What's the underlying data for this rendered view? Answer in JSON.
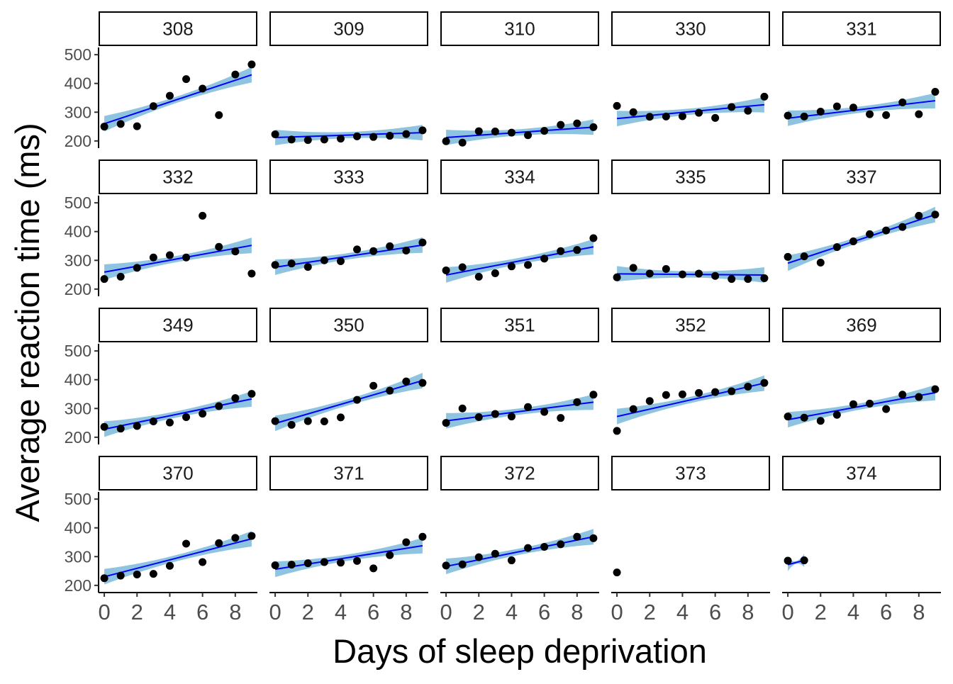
{
  "chart_data": {
    "type": "scatter",
    "layout": "faceted",
    "xlabel": "Days of sleep deprivation",
    "ylabel": "Average reaction time (ms)",
    "x_ticks": [
      0,
      2,
      4,
      6,
      8
    ],
    "y_ticks": [
      200,
      300,
      400,
      500
    ],
    "xlim": [
      -0.35,
      9.35
    ],
    "ylim": [
      175,
      525
    ],
    "grid": false,
    "colors": {
      "points": "#000000",
      "fit_line": "#0000ff",
      "ribbon": "#8fc4e0",
      "strip_border": "#000000",
      "tick_text": "#4d4d4d"
    },
    "panels": [
      {
        "subject": "308",
        "y": [
          250,
          259,
          251,
          321,
          357,
          415,
          382,
          290,
          431,
          466
        ],
        "fit": [
          260,
          430
        ]
      },
      {
        "subject": "309",
        "y": [
          223,
          205,
          203,
          205,
          208,
          216,
          214,
          218,
          224,
          237
        ],
        "fit": [
          212,
          229
        ]
      },
      {
        "subject": "310",
        "y": [
          199,
          194,
          234,
          233,
          229,
          220,
          235,
          256,
          261,
          248
        ],
        "fit": [
          212,
          248
        ]
      },
      {
        "subject": "330",
        "y": [
          322,
          300,
          284,
          285,
          286,
          298,
          280,
          318,
          305,
          354
        ],
        "fit": [
          278,
          326
        ]
      },
      {
        "subject": "331",
        "y": [
          288,
          285,
          302,
          320,
          316,
          293,
          290,
          334,
          293,
          371
        ],
        "fit": [
          279,
          340
        ]
      },
      {
        "subject": "332",
        "y": [
          235,
          243,
          274,
          310,
          318,
          310,
          455,
          347,
          331,
          254
        ],
        "fit": [
          259,
          352
        ]
      },
      {
        "subject": "333",
        "y": [
          284,
          289,
          277,
          300,
          297,
          338,
          332,
          349,
          334,
          362
        ],
        "fit": [
          276,
          353
        ]
      },
      {
        "subject": "334",
        "y": [
          265,
          276,
          243,
          255,
          279,
          284,
          306,
          332,
          336,
          377
        ],
        "fit": [
          249,
          347
        ]
      },
      {
        "subject": "335",
        "y": [
          241,
          274,
          254,
          270,
          251,
          254,
          246,
          235,
          235,
          238
        ],
        "fit": [
          253,
          249
        ]
      },
      {
        "subject": "337",
        "y": [
          312,
          314,
          292,
          346,
          366,
          391,
          404,
          416,
          455,
          459
        ],
        "fit": [
          290,
          459
        ]
      },
      {
        "subject": "349",
        "y": [
          236,
          230,
          239,
          255,
          251,
          270,
          282,
          308,
          336,
          351
        ],
        "fit": [
          228,
          333
        ]
      },
      {
        "subject": "350",
        "y": [
          256,
          243,
          256,
          255,
          269,
          330,
          379,
          362,
          394,
          389
        ],
        "fit": [
          248,
          397
        ]
      },
      {
        "subject": "351",
        "y": [
          250,
          300,
          270,
          281,
          272,
          305,
          288,
          267,
          322,
          348
        ],
        "fit": [
          257,
          322
        ]
      },
      {
        "subject": "352",
        "y": [
          222,
          298,
          326,
          347,
          349,
          354,
          357,
          360,
          376,
          389
        ],
        "fit": [
          272,
          388
        ]
      },
      {
        "subject": "369",
        "y": [
          272,
          268,
          257,
          278,
          315,
          317,
          298,
          348,
          340,
          367
        ],
        "fit": [
          261,
          355
        ]
      },
      {
        "subject": "370",
        "y": [
          225,
          234,
          238,
          240,
          268,
          345,
          281,
          347,
          365,
          372
        ],
        "fit": [
          230,
          362
        ]
      },
      {
        "subject": "371",
        "y": [
          270,
          272,
          277,
          281,
          279,
          285,
          259,
          305,
          350,
          369
        ],
        "fit": [
          256,
          338
        ]
      },
      {
        "subject": "372",
        "y": [
          269,
          273,
          298,
          310,
          287,
          330,
          334,
          343,
          369,
          364
        ],
        "fit": [
          266,
          369
        ]
      },
      {
        "subject": "373",
        "y": [
          245
        ],
        "fit": null
      },
      {
        "subject": "374",
        "y": [
          286,
          287
        ],
        "fit": [
          272,
          287
        ]
      }
    ]
  }
}
